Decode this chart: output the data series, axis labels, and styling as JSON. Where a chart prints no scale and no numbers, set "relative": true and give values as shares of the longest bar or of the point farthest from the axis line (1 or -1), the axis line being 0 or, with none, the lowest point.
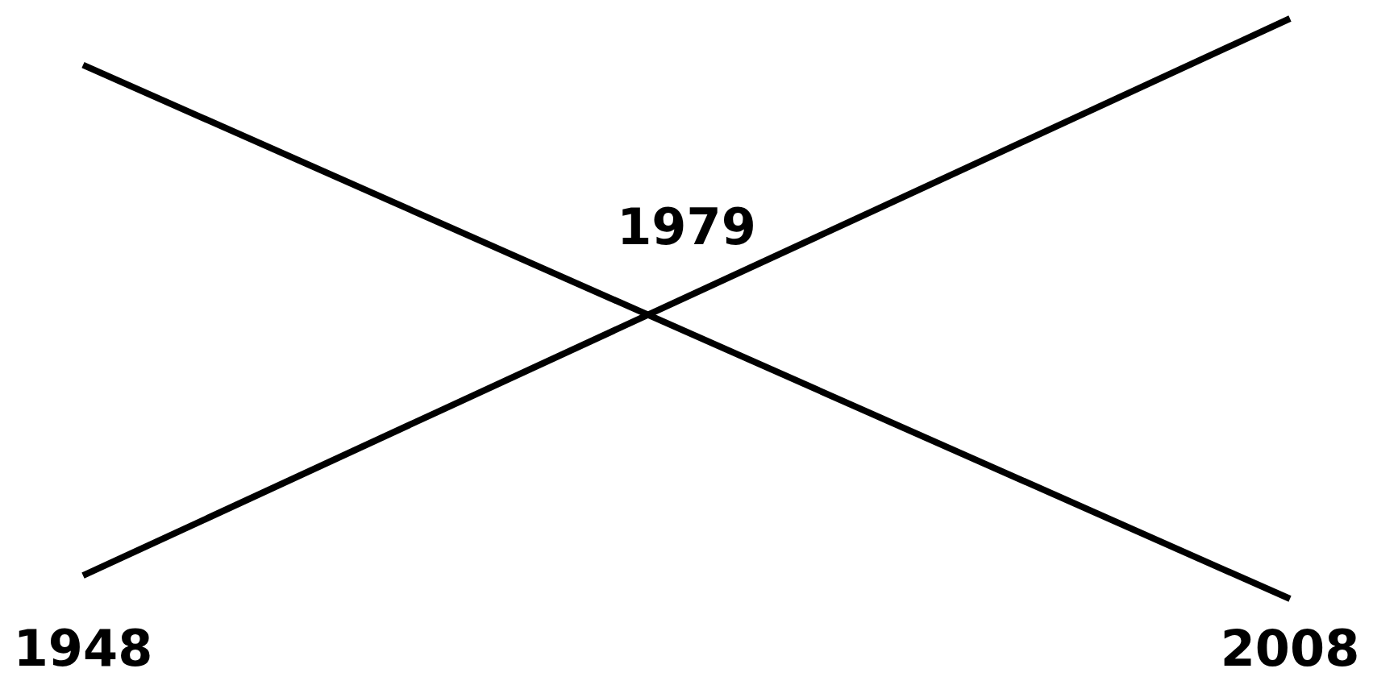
{
  "chart_data": {
    "type": "line",
    "relative": true,
    "x": [
      1948,
      2008
    ],
    "series": [
      {
        "color": "#000000",
        "values": [
          0.04,
          1
        ]
      },
      {
        "color": "#000000",
        "values": [
          0.92,
          0
        ]
      }
    ],
    "xlim": [
      1948,
      2008
    ],
    "xticks": [
      1948,
      2008
    ],
    "tick_labels": "x",
    "annotations": [
      "1979"
    ]
  }
}
